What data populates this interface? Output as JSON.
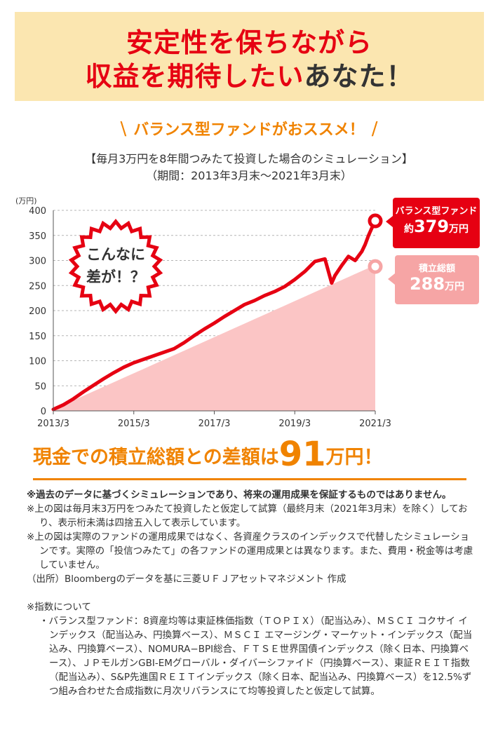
{
  "header": {
    "line1": "安定性を保ちながら",
    "line2_highlight": "収益を期待したい",
    "line2_plain": "あなた！"
  },
  "subheading": {
    "text": "バランス型ファンドがおススメ！",
    "slash_left": "\\",
    "slash_right": "/"
  },
  "chart_title": {
    "line1": "【毎月3万円を8年間つみたて投資した場合のシミュレーション】",
    "line2": "（期間：2013年3月末〜2021年3月末）"
  },
  "burst": {
    "line1": "こんなに",
    "line2": "差が！？"
  },
  "callouts": {
    "fund_label": "バランス型ファンド",
    "fund_prefix": "約",
    "fund_value": "379",
    "fund_unit": "万円",
    "total_label": "積立総額",
    "total_value": "288",
    "total_unit": "万円"
  },
  "chart_data": {
    "type": "area",
    "yunit": "(万円)",
    "ylim": [
      0,
      400
    ],
    "yticks": [
      0,
      50,
      100,
      150,
      200,
      250,
      300,
      350,
      400
    ],
    "xticks": [
      "2013/3",
      "2015/3",
      "2017/3",
      "2019/3",
      "2021/3"
    ],
    "grid": true,
    "x": [
      0,
      3,
      6,
      9,
      12,
      15,
      18,
      21,
      24,
      27,
      30,
      33,
      36,
      39,
      42,
      45,
      48,
      51,
      54,
      57,
      60,
      63,
      66,
      69,
      72,
      75,
      78,
      81,
      83,
      84,
      86,
      88,
      90,
      92,
      93,
      94,
      95,
      96
    ],
    "series": [
      {
        "name": "バランス型ファンド",
        "values": [
          3,
          12,
          24,
          38,
          51,
          64,
          76,
          87,
          96,
          103,
          110,
          117,
          124,
          136,
          150,
          163,
          175,
          188,
          200,
          212,
          220,
          230,
          238,
          248,
          262,
          278,
          298,
          303,
          255,
          270,
          290,
          308,
          300,
          318,
          332,
          350,
          365,
          379
        ]
      },
      {
        "name": "積立総額",
        "values": [
          3,
          12,
          21,
          30,
          39,
          48,
          57,
          66,
          75,
          84,
          93,
          102,
          111,
          120,
          129,
          138,
          147,
          156,
          165,
          174,
          183,
          192,
          201,
          210,
          219,
          228,
          237,
          246,
          252,
          255,
          261,
          267,
          273,
          279,
          282,
          285,
          286,
          288
        ]
      }
    ],
    "colors": {
      "fund": "#e60012",
      "total_fill": "#fbc5c5"
    }
  },
  "difference": {
    "text": "現金での積立総額との差額は",
    "number": "91",
    "unit": "万円！"
  },
  "notes": {
    "n1": "※過去のデータに基づくシミュレーションであり、将来の運用成果を保証するものではありません。",
    "n2": "※上の図は毎月末3万円をつみたて投資したと仮定して試算（最終月末（2021年3月末）を除く）しており、表示桁未満は四捨五入して表示しています。",
    "n3": "※上の図は実際のファンドの運用成果ではなく、各資産クラスのインデックスで代替したシミュレーションです。実際の「投信つみたて」の各ファンドの運用成果とは異なります。また、費用・税金等は考慮していません。",
    "source": "（出所）Bloombergのデータを基に三菱ＵＦＪアセットマネジメント 作成",
    "idx_title": "※指数について",
    "idx_body": "・バランス型ファンド：8資産均等は東証株価指数（ＴＯＰＩＸ）（配当込み）、ＭＳＣＩ コクサイ インデックス（配当込み、円換算ベース）、ＭＳＣＩ エマージング・マーケット・インデックス（配当込み、円換算ベース）、NOMURA−BPI総合、ＦＴＳＥ世界国債インデックス（除く日本、円換算ベース）、ＪＰモルガンGBI-EMグローバル・ダイバーシファイド（円換算ベース）、東証ＲＥＩＴ指数（配当込み）、S&P先進国ＲＥＩＴインデックス（除く日本、配当込み、円換算ベース）を12.5%ずつ組み合わせた合成指数に月次リバランスにて均等投資したと仮定して試算。"
  }
}
